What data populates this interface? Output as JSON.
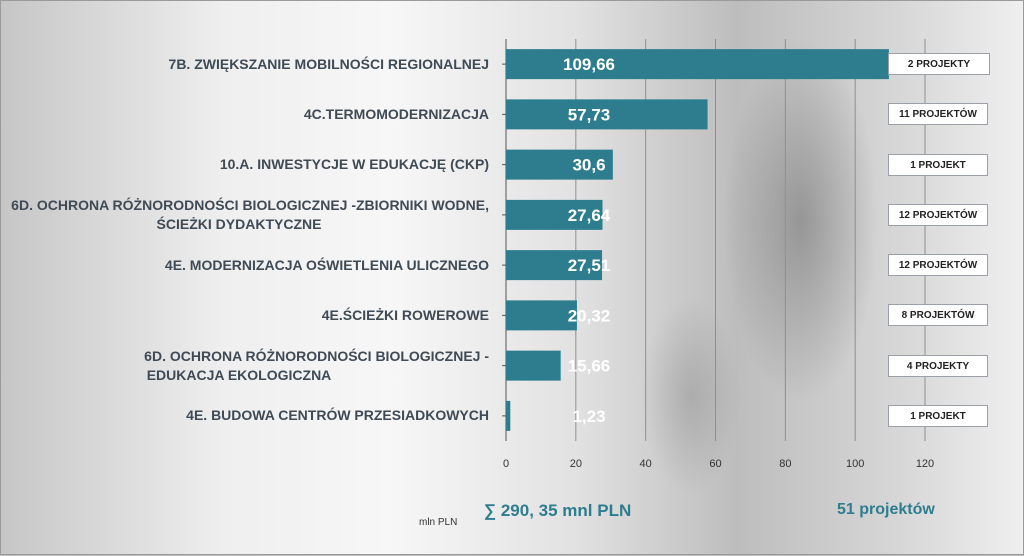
{
  "chart_data": {
    "type": "bar",
    "orientation": "horizontal",
    "categories": [
      "7B. ZWIĘKSZANIE MOBILNOŚCI REGIONALNEJ",
      "4C.TERMOMODERNIZACJA",
      "10.A. INWESTYCJE W EDUKACJĘ (CKP)",
      "6D. OCHRONA RÓŻNORODNOŚCI BIOLOGICZNEJ -ZBIORNIKI WODNE, ŚCIEŻKI DYDAKTYCZNE",
      "4E. MODERNIZACJA OŚWIETLENIA ULICZNEGO",
      "4E.ŚCIEŻKI ROWEROWE",
      "6D. OCHRONA RÓŻNORODNOŚCI BIOLOGICZNEJ - EDUKACJA EKOLOGICZNA",
      "4E. BUDOWA CENTRÓW PRZESIADKOWYCH"
    ],
    "category_lines": [
      [
        "7B. ZWIĘKSZANIE MOBILNOŚCI REGIONALNEJ"
      ],
      [
        "4C.TERMOMODERNIZACJA"
      ],
      [
        "10.A. INWESTYCJE W EDUKACJĘ (CKP)"
      ],
      [
        "6D. OCHRONA RÓŻNORODNOŚCI BIOLOGICZNEJ -ZBIORNIKI WODNE,",
        "ŚCIEŻKI DYDAKTYCZNE"
      ],
      [
        "4E. MODERNIZACJA OŚWIETLENIA ULICZNEGO"
      ],
      [
        "4E.ŚCIEŻKI ROWEROWE"
      ],
      [
        "6D. OCHRONA RÓŻNORODNOŚCI BIOLOGICZNEJ -",
        "EDUKACJA EKOLOGICZNA"
      ],
      [
        "4E. BUDOWA CENTRÓW PRZESIADKOWYCH"
      ]
    ],
    "values": [
      109.66,
      57.73,
      30.6,
      27.64,
      27.51,
      20.32,
      15.66,
      1.23
    ],
    "value_labels": [
      "109,66",
      "57,73",
      "30,6",
      "27,64",
      "27,51",
      "20,32",
      "15,66",
      "1,23"
    ],
    "project_labels": [
      "2 PROJEKTY",
      "11 PROJEKTÓW",
      "1 PROJEKT",
      "12 PROJEKTÓW",
      "12 PROJEKTÓW",
      "8 PROJEKTÓW",
      "4 PROJEKTY",
      "1 PROJEKT"
    ],
    "xlim": [
      0,
      120
    ],
    "xticks": [
      0,
      20,
      40,
      60,
      80,
      100,
      120
    ],
    "xlabel": "mln PLN",
    "grid": true,
    "bar_color": "#2e7d8f",
    "value_label_color": "#ffffff"
  },
  "summary": {
    "total_label": "∑  290, 35 mnl PLN",
    "projects_label": "51 projektów"
  },
  "colors": {
    "accent": "#2e7d8f",
    "category_text": "#3f4a55"
  }
}
